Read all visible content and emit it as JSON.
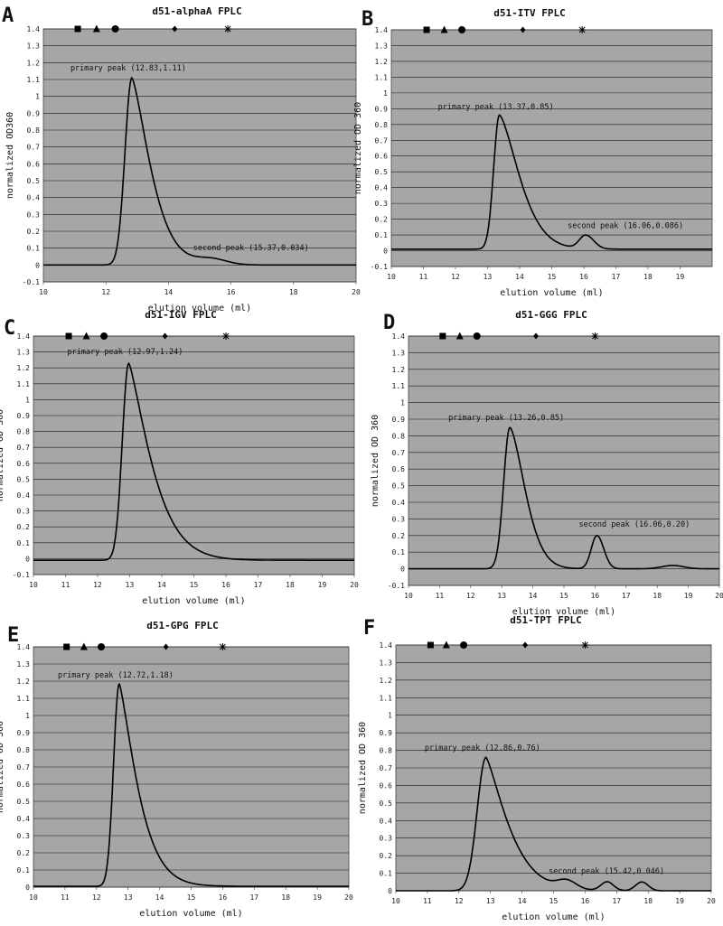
{
  "figure": {
    "x_axis_label": "elution volume (ml)"
  },
  "chart_data": [
    {
      "panel_letter": "A",
      "title": "d51-alphaA FPLC",
      "type": "line",
      "ylabel": "normalized OD360",
      "xlabel": "elution volume (ml)",
      "xlim": [
        10,
        20
      ],
      "ylim": [
        -0.1,
        1.4
      ],
      "xticks": [
        "10",
        "12",
        "14",
        "16",
        "18",
        "20"
      ],
      "yticks": [
        "-0.1",
        "0",
        "0.1",
        "0.2",
        "0.3",
        "0.4",
        "0.5",
        "0.6",
        "0.7",
        "0.8",
        "0.9",
        "1",
        "1.1",
        "1.2",
        "1.3",
        "1.4"
      ],
      "markers": [
        {
          "symbol": "square",
          "x": 11.1
        },
        {
          "symbol": "triangle",
          "x": 11.7
        },
        {
          "symbol": "circle",
          "x": 12.3
        },
        {
          "symbol": "diamond",
          "x": 14.2
        },
        {
          "symbol": "asterisk",
          "x": 15.9
        }
      ],
      "peaks": [
        {
          "label": "primary peak (12.83,1.11)",
          "x": 12.83,
          "y": 1.11,
          "width_left": 0.22,
          "width_right": 0.5,
          "skew": 1.4
        },
        {
          "label": "second peak (15.37,0.034)",
          "x": 15.37,
          "y": 0.034,
          "width_left": 0.5,
          "width_right": 0.5,
          "skew": 1.0
        }
      ],
      "baseline": 0.0
    },
    {
      "panel_letter": "B",
      "title": "d51-ITV FPLC",
      "type": "line",
      "ylabel": "normalized OD 360",
      "xlabel": "elution volume (ml)",
      "xlim": [
        10,
        20
      ],
      "ylim": [
        -0.1,
        1.4
      ],
      "xticks": [
        "10",
        "11",
        "12",
        "13",
        "14",
        "15",
        "16",
        "17",
        "18",
        "19"
      ],
      "yticks": [
        "-0.1",
        "0",
        "0.1",
        "0.2",
        "0.3",
        "0.4",
        "0.5",
        "0.6",
        "0.7",
        "0.8",
        "0.9",
        "1",
        "1.1",
        "1.2",
        "1.3",
        "1.4"
      ],
      "markers": [
        {
          "symbol": "square",
          "x": 11.1
        },
        {
          "symbol": "triangle",
          "x": 11.65
        },
        {
          "symbol": "circle",
          "x": 12.2
        },
        {
          "symbol": "diamond",
          "x": 14.1
        },
        {
          "symbol": "asterisk",
          "x": 15.95
        }
      ],
      "peaks": [
        {
          "label": "primary peak (13.37,0.85)",
          "x": 13.37,
          "y": 0.85,
          "width_left": 0.18,
          "width_right": 0.55,
          "skew": 1.5
        },
        {
          "label": "second peak (16.06,0.086)",
          "x": 16.06,
          "y": 0.086,
          "width_left": 0.2,
          "width_right": 0.25,
          "skew": 1.0
        }
      ],
      "baseline": 0.01
    },
    {
      "panel_letter": "C",
      "title": "d51-IGV FPLC",
      "type": "line",
      "ylabel": "normalized OD 360",
      "xlabel": "elution volume (ml)",
      "xlim": [
        10,
        20
      ],
      "ylim": [
        -0.1,
        1.4
      ],
      "xticks": [
        "10",
        "11",
        "12",
        "13",
        "14",
        "15",
        "16",
        "17",
        "18",
        "19",
        "20"
      ],
      "yticks": [
        "-0.1",
        "0",
        "0.1",
        "0.2",
        "0.3",
        "0.4",
        "0.5",
        "0.6",
        "0.7",
        "0.8",
        "0.9",
        "1",
        "1.1",
        "1.2",
        "1.3",
        "1.4"
      ],
      "markers": [
        {
          "symbol": "square",
          "x": 11.1
        },
        {
          "symbol": "triangle",
          "x": 11.65
        },
        {
          "symbol": "circle",
          "x": 12.2
        },
        {
          "symbol": "diamond",
          "x": 14.1
        },
        {
          "symbol": "asterisk",
          "x": 16.0
        }
      ],
      "peaks": [
        {
          "label": "primary peak (12.97,1.24)",
          "x": 12.97,
          "y": 1.24,
          "width_left": 0.2,
          "width_right": 0.55,
          "skew": 1.3
        }
      ],
      "baseline": -0.01
    },
    {
      "panel_letter": "D",
      "title": "d51-GGG FPLC",
      "type": "line",
      "ylabel": "normalized OD 360",
      "xlabel": "elution volume (ml)",
      "xlim": [
        10,
        20
      ],
      "ylim": [
        -0.1,
        1.4
      ],
      "xticks": [
        "10",
        "11",
        "12",
        "13",
        "14",
        "15",
        "16",
        "17",
        "18",
        "19",
        "20"
      ],
      "yticks": [
        "-0.1",
        "0",
        "0.1",
        "0.2",
        "0.3",
        "0.4",
        "0.5",
        "0.6",
        "0.7",
        "0.8",
        "0.9",
        "1",
        "1.1",
        "1.2",
        "1.3",
        "1.4"
      ],
      "markers": [
        {
          "symbol": "square",
          "x": 11.1
        },
        {
          "symbol": "triangle",
          "x": 11.65
        },
        {
          "symbol": "circle",
          "x": 12.2
        },
        {
          "symbol": "diamond",
          "x": 14.1
        },
        {
          "symbol": "asterisk",
          "x": 16.0
        }
      ],
      "peaks": [
        {
          "label": "primary peak (13.26,0.85)",
          "x": 13.26,
          "y": 0.85,
          "width_left": 0.2,
          "width_right": 0.45,
          "skew": 1.6
        },
        {
          "label": "second peak (16.06,0.20)",
          "x": 16.06,
          "y": 0.2,
          "width_left": 0.18,
          "width_right": 0.22,
          "skew": 1.0
        },
        {
          "label": "",
          "x": 18.5,
          "y": 0.02,
          "width_left": 0.35,
          "width_right": 0.35,
          "skew": 1.0
        }
      ],
      "baseline": 0.0
    },
    {
      "panel_letter": "E",
      "title": "d51-GPG FPLC",
      "type": "line",
      "ylabel": "normalized OD 360",
      "xlabel": "elution volume (ml)",
      "xlim": [
        10,
        20
      ],
      "ylim": [
        0,
        1.4
      ],
      "xticks": [
        "10",
        "11",
        "12",
        "13",
        "14",
        "15",
        "16",
        "17",
        "18",
        "19",
        "20"
      ],
      "yticks": [
        "0",
        "0.1",
        "0.2",
        "0.3",
        "0.4",
        "0.5",
        "0.6",
        "0.7",
        "0.8",
        "0.9",
        "1",
        "1.1",
        "1.2",
        "1.3",
        "1.4"
      ],
      "markers": [
        {
          "symbol": "square",
          "x": 11.05
        },
        {
          "symbol": "triangle",
          "x": 11.6
        },
        {
          "symbol": "circle",
          "x": 12.15
        },
        {
          "symbol": "diamond",
          "x": 14.2
        },
        {
          "symbol": "asterisk",
          "x": 16.0
        }
      ],
      "peaks": [
        {
          "label": "primary peak (12.72,1.18)",
          "x": 12.72,
          "y": 1.18,
          "width_left": 0.18,
          "width_right": 0.45,
          "skew": 1.3
        }
      ],
      "baseline": 0.005
    },
    {
      "panel_letter": "F",
      "title": "d51-TPT FPLC",
      "type": "line",
      "ylabel": "normalized OD 360",
      "xlabel": "elution volume (ml)",
      "xlim": [
        10,
        20
      ],
      "ylim": [
        0,
        1.4
      ],
      "xticks": [
        "10",
        "11",
        "12",
        "13",
        "14",
        "15",
        "16",
        "17",
        "18",
        "19",
        "20"
      ],
      "yticks": [
        "0",
        "0.1",
        "0.2",
        "0.3",
        "0.4",
        "0.5",
        "0.6",
        "0.7",
        "0.8",
        "0.9",
        "1",
        "1.1",
        "1.2",
        "1.3",
        "1.4"
      ],
      "markers": [
        {
          "symbol": "square",
          "x": 11.1
        },
        {
          "symbol": "triangle",
          "x": 11.6
        },
        {
          "symbol": "circle",
          "x": 12.15
        },
        {
          "symbol": "diamond",
          "x": 14.1
        },
        {
          "symbol": "asterisk",
          "x": 16.0
        }
      ],
      "peaks": [
        {
          "label": "primary peak (12.86,0.76)",
          "x": 12.86,
          "y": 0.76,
          "width_left": 0.28,
          "width_right": 0.55,
          "skew": 1.3
        },
        {
          "label": "second peak (15.42,0.046)",
          "x": 15.42,
          "y": 0.046,
          "width_left": 0.3,
          "width_right": 0.3,
          "skew": 1.0
        },
        {
          "label": "",
          "x": 16.7,
          "y": 0.05,
          "width_left": 0.2,
          "width_right": 0.2,
          "skew": 1.0
        },
        {
          "label": "",
          "x": 17.8,
          "y": 0.05,
          "width_left": 0.2,
          "width_right": 0.2,
          "skew": 1.0
        }
      ],
      "baseline": 0.0
    }
  ]
}
